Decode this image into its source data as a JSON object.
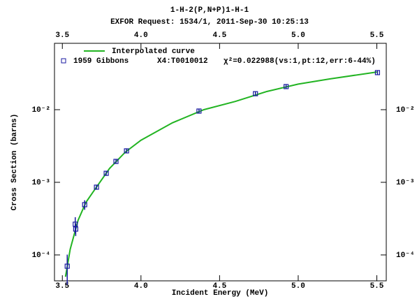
{
  "chart_data": {
    "type": "scatter",
    "title": "1-H-2(P,N+P)1-H-1",
    "subtitle": "EXFOR Request: 1534/1, 2011-Sep-30 10:25:13",
    "x_label": "Incident Energy (MeV)",
    "y_label": "Cross Section (barns)",
    "log_y": true,
    "xlim": [
      3.45,
      5.56
    ],
    "xticks": [
      3.5,
      {
        "value": 4.0,
        "label": "4.0"
      },
      4.5,
      {
        "value": 5.0,
        "label": "5.0"
      },
      5.5
    ],
    "ylim": [
      4.4e-05,
      0.082
    ],
    "yticks": [
      {
        "value": 0.0001,
        "label": "10⁻⁴"
      },
      {
        "value": 0.001,
        "label": "10⁻³"
      },
      {
        "value": 0.01,
        "label": "10⁻²"
      }
    ],
    "series": [
      {
        "name": "Interpolated curve",
        "type": "line",
        "color": "#22b422",
        "x": [
          3.52,
          3.55,
          3.6,
          3.65,
          3.7,
          3.8,
          3.9,
          4.0,
          4.2,
          4.4,
          4.6,
          4.8,
          5.0,
          5.2,
          5.5
        ],
        "values": [
          5e-05,
          0.00012,
          0.0003,
          0.00053,
          0.00076,
          0.00155,
          0.0026,
          0.0038,
          0.0066,
          0.01,
          0.013,
          0.0178,
          0.0225,
          0.0265,
          0.033
        ]
      },
      {
        "name": "1959 Gibbons",
        "type": "scatter",
        "color": "#1a1aa0",
        "dataset": "X4:T0010012",
        "fit": "χ²=0.022988(vs:1,pt:12,err:6-44%)",
        "x": [
          3.531,
          3.582,
          3.585,
          3.642,
          3.717,
          3.779,
          3.841,
          3.908,
          4.369,
          4.728,
          4.923,
          5.504
        ],
        "values": [
          7e-05,
          0.000265,
          0.000227,
          0.000492,
          0.000857,
          0.00133,
          0.00194,
          0.00271,
          0.00957,
          0.0166,
          0.0208,
          0.0324
        ],
        "errors": [
          3.1e-05,
          6.6e-05,
          4.5e-05,
          7.4e-05,
          6e-05,
          8e-05,
          0.00012,
          0.00016,
          0.00057,
          0.001,
          0.0012,
          0.0019
        ]
      }
    ]
  }
}
